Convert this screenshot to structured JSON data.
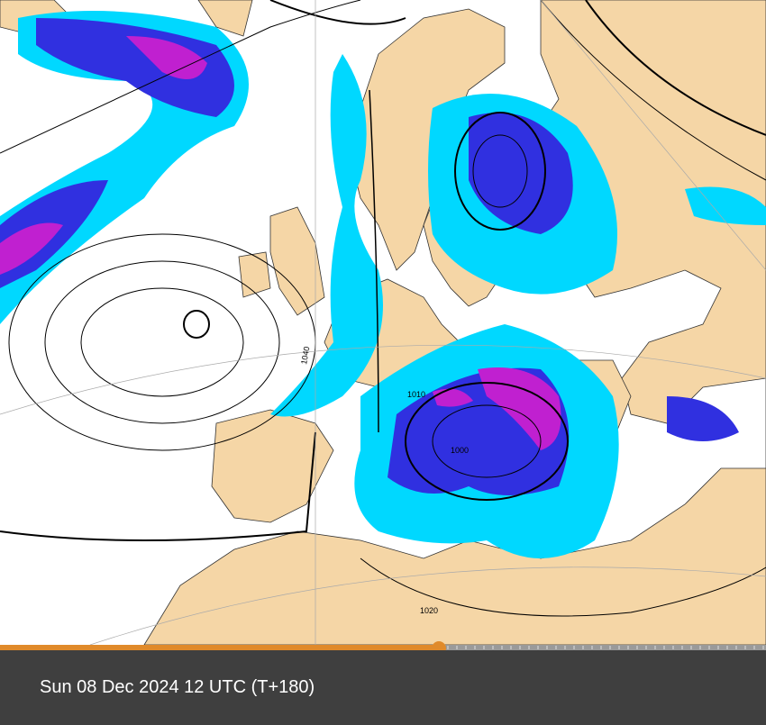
{
  "timestamp": "Sun 08 Dec 2024 12 UTC (T+180)",
  "isobar_labels": [
    "1010",
    "1000",
    "1020",
    "1040"
  ]
}
